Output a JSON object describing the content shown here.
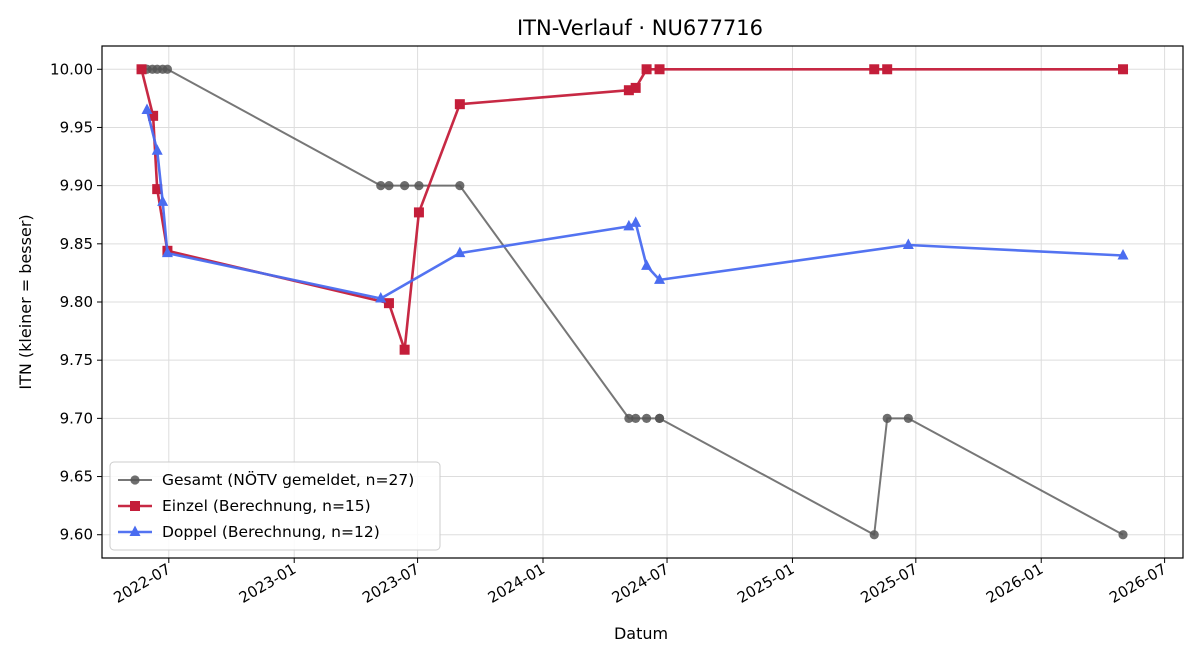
{
  "chart_data": {
    "type": "line",
    "title": "ITN-Verlauf · NU677716",
    "xlabel": "Datum",
    "ylabel": "ITN  (kleiner = besser)",
    "xlim": [
      "2022-03-25",
      "2026-07-28"
    ],
    "ylim": [
      9.58,
      10.02
    ],
    "x_ticks": [
      "2022-07-01",
      "2023-01-01",
      "2023-07-01",
      "2024-01-01",
      "2024-07-01",
      "2025-01-01",
      "2025-07-01",
      "2026-01-01",
      "2026-07-01"
    ],
    "x_tick_labels": [
      "2022-07",
      "2023-01",
      "2023-07",
      "2024-01",
      "2024-07",
      "2025-01",
      "2025-07",
      "2026-01",
      "2026-07"
    ],
    "y_ticks": [
      9.6,
      9.65,
      9.7,
      9.75,
      9.8,
      9.85,
      9.9,
      9.95,
      10.0
    ],
    "y_tick_labels": [
      "9.60",
      "9.65",
      "9.70",
      "9.75",
      "9.80",
      "9.85",
      "9.90",
      "9.95",
      "10.00"
    ],
    "grid": true,
    "legend_position": "lower-left",
    "series": [
      {
        "name": "Gesamt (NÖTV gemeldet, n=27)",
        "color": "#555555",
        "marker": "circle",
        "points": [
          [
            "2022-05-22",
            10.0
          ],
          [
            "2022-05-30",
            10.0
          ],
          [
            "2022-06-07",
            10.0
          ],
          [
            "2022-06-14",
            10.0
          ],
          [
            "2022-06-22",
            10.0
          ],
          [
            "2022-06-29",
            10.0
          ],
          [
            "2023-05-08",
            9.9
          ],
          [
            "2023-05-20",
            9.9
          ],
          [
            "2023-06-12",
            9.9
          ],
          [
            "2023-07-03",
            9.9
          ],
          [
            "2023-09-01",
            9.9
          ],
          [
            "2024-05-06",
            9.7
          ],
          [
            "2024-05-16",
            9.7
          ],
          [
            "2024-06-01",
            9.7
          ],
          [
            "2024-06-20",
            9.7
          ],
          [
            "2024-06-20",
            9.7
          ],
          [
            "2025-05-01",
            9.6
          ],
          [
            "2025-05-20",
            9.7
          ],
          [
            "2025-06-20",
            9.7
          ],
          [
            "2026-05-01",
            9.6
          ]
        ]
      },
      {
        "name": "Einzel (Berechnung, n=15)",
        "color": "#c41e3a",
        "marker": "square",
        "points": [
          [
            "2022-05-22",
            10.0
          ],
          [
            "2022-06-08",
            9.96
          ],
          [
            "2022-06-14",
            9.897
          ],
          [
            "2022-06-29",
            9.844
          ],
          [
            "2023-05-20",
            9.799
          ],
          [
            "2023-06-12",
            9.759
          ],
          [
            "2023-07-03",
            9.877
          ],
          [
            "2023-09-01",
            9.97
          ],
          [
            "2024-05-06",
            9.982
          ],
          [
            "2024-05-16",
            9.984
          ],
          [
            "2024-06-01",
            10.0
          ],
          [
            "2024-06-20",
            10.0
          ],
          [
            "2025-05-01",
            10.0
          ],
          [
            "2025-05-20",
            10.0
          ],
          [
            "2026-05-01",
            10.0
          ]
        ]
      },
      {
        "name": "Doppel (Berechnung, n=12)",
        "color": "#4a6cf0",
        "marker": "triangle",
        "points": [
          [
            "2022-05-30",
            9.965
          ],
          [
            "2022-06-14",
            9.93
          ],
          [
            "2022-06-22",
            9.886
          ],
          [
            "2022-06-29",
            9.842
          ],
          [
            "2023-05-08",
            9.803
          ],
          [
            "2023-09-01",
            9.842
          ],
          [
            "2024-05-06",
            9.865
          ],
          [
            "2024-05-16",
            9.868
          ],
          [
            "2024-06-01",
            9.831
          ],
          [
            "2024-06-20",
            9.819
          ],
          [
            "2025-06-20",
            9.849
          ],
          [
            "2026-05-01",
            9.84
          ]
        ]
      }
    ]
  }
}
